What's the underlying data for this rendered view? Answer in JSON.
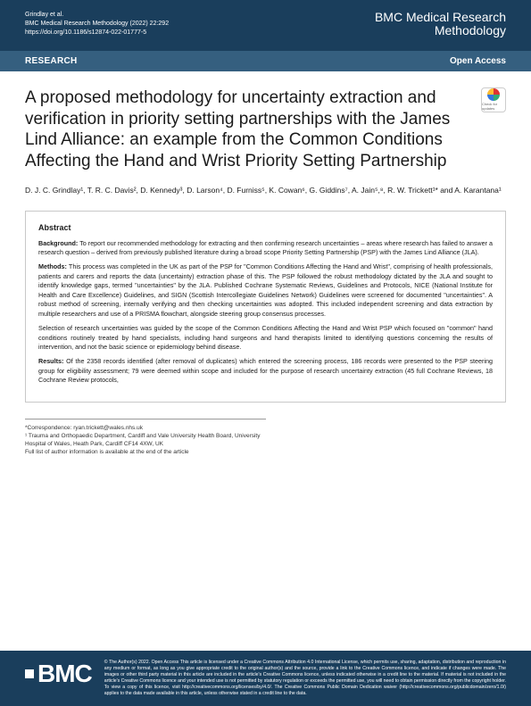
{
  "header": {
    "citation_line1": "Grindlay et al.",
    "citation_line2": "BMC Medical Research Methodology        (2022) 22:292",
    "doi": "https://doi.org/10.1186/s12874-022-01777-5",
    "journal_line1": "BMC Medical Research",
    "journal_line2": "Methodology"
  },
  "banner": {
    "category": "RESEARCH",
    "access": "Open Access"
  },
  "checkUpdates": "Check for updates",
  "title": "A proposed methodology for uncertainty extraction and verification in priority setting partnerships with the James Lind Alliance: an example from the Common Conditions Affecting the Hand and Wrist Priority Setting Partnership",
  "authors": "D. J. C. Grindlay¹, T. R. C. Davis², D. Kennedy³, D. Larson⁴, D. Furniss⁵, K. Cowan⁶, G. Giddins⁷, A. Jain⁵,⁸, R. W. Trickett¹* and A. Karantana¹",
  "abstract": {
    "heading": "Abstract",
    "background_label": "Background:",
    "background": " To report our recommended methodology for extracting and then confirming research uncertainties – areas where research has failed to answer a research question – derived from previously published literature during a broad scope Priority Setting Partnership (PSP) with the James Lind Alliance (JLA).",
    "methods_label": "Methods:",
    "methods": " This process was completed in the UK as part of the PSP for \"Common Conditions Affecting the Hand and Wrist\", comprising of health professionals, patients and carers and reports the data (uncertainty) extraction phase of this. The PSP followed the robust methodology dictated by the JLA and sought to identify knowledge gaps, termed \"uncertainties\" by the JLA. Published Cochrane Systematic Reviews, Guidelines and Protocols, NICE (National Institute for Health and Care Excellence) Guidelines, and SIGN (Scottish Intercollegiate Guidelines Network) Guidelines were screened for documented \"uncertainties\". A robust method of screening, internally verifying and then checking uncertainties was adopted. This included independent screening and data extraction by multiple researchers and use of a PRISMA flowchart, alongside steering group consensus processes.",
    "methods2": "Selection of research uncertainties was guided by the scope of the Common Conditions Affecting the Hand and Wrist PSP which focused on \"common\" hand conditions routinely treated by hand specialists, including hand surgeons and hand therapists limited to identifying questions concerning the results of intervention, and not the basic science or epidemiology behind disease.",
    "results_label": "Results:",
    "results": " Of the 2358 records identified (after removal of duplicates) which entered the screening process, 186 records were presented to the PSP steering group for eligibility assessment; 79 were deemed within scope and included for the purpose of research uncertainty extraction (45 full Cochrane Reviews, 18 Cochrane Review protocols,"
  },
  "correspondence": {
    "line1": "*Correspondence: ryan.trickett@wales.nhs.uk",
    "line2": "¹ Trauma and Orthopaedic Department, Cardiff and Vale University Health Board, University Hospital of Wales, Heath Park, Cardiff CF14 4XW, UK",
    "line3": "Full list of author information is available at the end of the article"
  },
  "footer": {
    "logo": "BMC",
    "license": "© The Author(s) 2022. Open Access This article is licensed under a Creative Commons Attribution 4.0 International License, which permits use, sharing, adaptation, distribution and reproduction in any medium or format, as long as you give appropriate credit to the original author(s) and the source, provide a link to the Creative Commons licence, and indicate if changes were made. The images or other third party material in this article are included in the article's Creative Commons licence, unless indicated otherwise in a credit line to the material. If material is not included in the article's Creative Commons licence and your intended use is not permitted by statutory regulation or exceeds the permitted use, you will need to obtain permission directly from the copyright holder. To view a copy of this licence, visit http://creativecommons.org/licenses/by/4.0/. The Creative Commons Public Domain Dedication waiver (http://creativecommons.org/publicdomain/zero/1.0/) applies to the data made available in this article, unless otherwise stated in a credit line to the data."
  }
}
